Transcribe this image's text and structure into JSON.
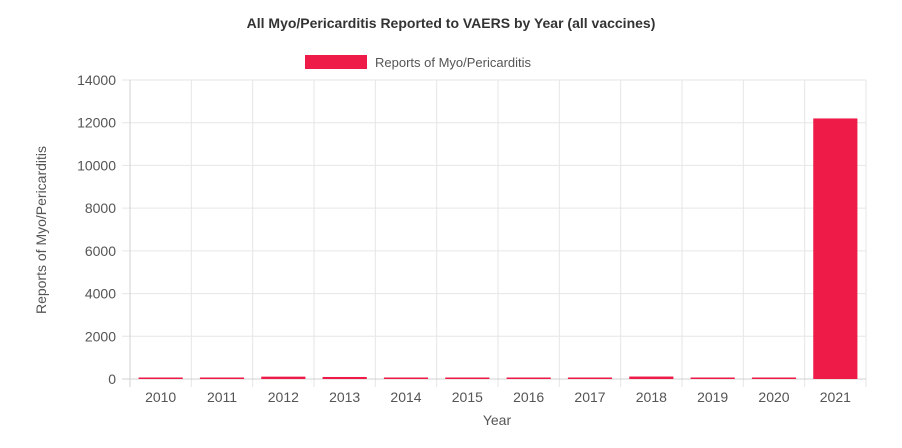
{
  "chart_data": {
    "type": "bar",
    "title": "All Myo/Pericarditis Reported to VAERS by Year (all vaccines)",
    "xlabel": "Year",
    "ylabel": "Reports of Myo/Pericarditis",
    "categories": [
      "2010",
      "2011",
      "2012",
      "2013",
      "2014",
      "2015",
      "2016",
      "2017",
      "2018",
      "2019",
      "2020",
      "2021"
    ],
    "series": [
      {
        "name": "Reports of Myo/Pericarditis",
        "color": "#ee1a48",
        "values": [
          55,
          50,
          110,
          95,
          60,
          25,
          50,
          60,
          115,
          60,
          60,
          12200
        ]
      }
    ],
    "ylim": [
      0,
      14000
    ],
    "yticks": [
      0,
      2000,
      4000,
      6000,
      8000,
      10000,
      12000,
      14000
    ],
    "grid": true,
    "legend": "top-center"
  }
}
